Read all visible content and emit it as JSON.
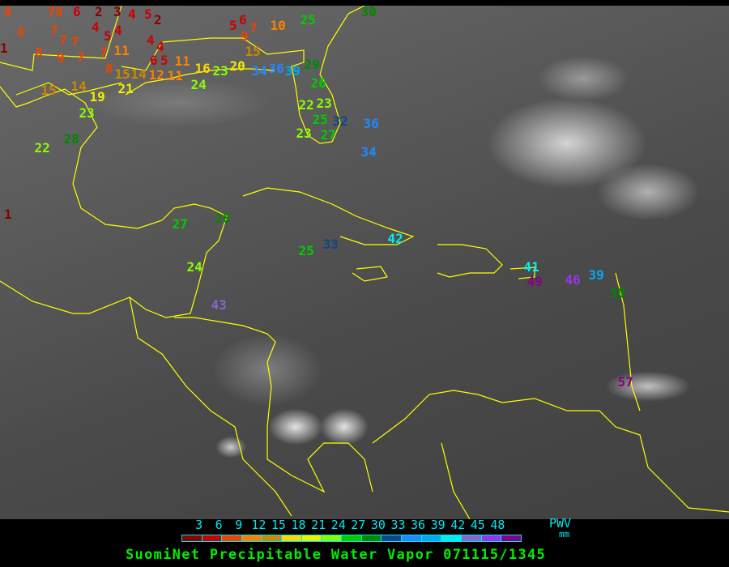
{
  "title": "SuomiNet Precipitable Water Vapor 071115/1345",
  "legend": {
    "ticks": [
      "3",
      "6",
      "9",
      "12",
      "15",
      "18",
      "21",
      "24",
      "27",
      "30",
      "33",
      "36",
      "39",
      "42",
      "45",
      "48"
    ],
    "label": "PWV",
    "unit": "mm",
    "colors": [
      "#8b0000",
      "#cc0000",
      "#ee4400",
      "#ff8000",
      "#cc8800",
      "#ffd700",
      "#eeee00",
      "#88ff00",
      "#00cc00",
      "#008800",
      "#114488",
      "#2288ff",
      "#00aaee",
      "#00eeee",
      "#8866cc",
      "#9933ee",
      "#880088"
    ]
  },
  "coastline_color": "#ffff00",
  "stations": [
    "8",
    "8",
    "78",
    "7",
    "6",
    "2",
    "4",
    "3",
    "4",
    "5",
    "2",
    "4",
    "4",
    "6",
    "5",
    "5",
    "4",
    "7",
    "7",
    "7",
    "7",
    "11",
    "8",
    "9",
    "8",
    "15",
    "14",
    "19",
    "21",
    "15",
    "14",
    "12",
    "11",
    "11",
    "16",
    "23",
    "20",
    "34",
    "36",
    "39",
    "29",
    "26",
    "22",
    "23",
    "25",
    "27",
    "23",
    "32",
    "34",
    "36",
    "30",
    "25",
    "5",
    "6",
    "7",
    "9",
    "10",
    "15",
    "1",
    "1",
    "22",
    "28",
    "23",
    "24",
    "27",
    "28",
    "24",
    "25",
    "33",
    "42",
    "43",
    "41",
    "49",
    "46",
    "39",
    "30",
    "57"
  ]
}
